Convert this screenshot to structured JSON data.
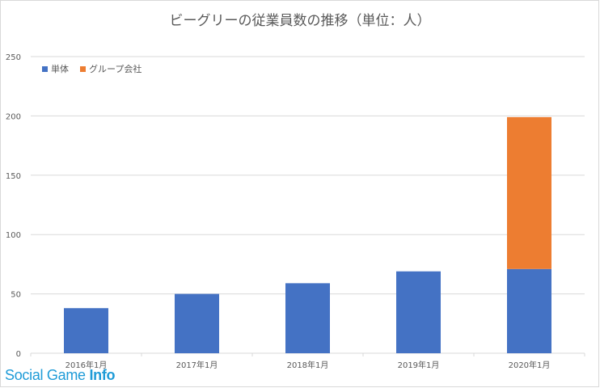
{
  "chart_data": {
    "type": "bar",
    "stacked": true,
    "title": "ビーグリーの従業員数の推移（単位：人）",
    "categories": [
      "2016年1月",
      "2017年1月",
      "2018年1月",
      "2019年1月",
      "2020年1月"
    ],
    "series": [
      {
        "name": "単体",
        "color": "#4472c4",
        "values": [
          38,
          50,
          59,
          69,
          71
        ]
      },
      {
        "name": "グループ会社",
        "color": "#ed7d31",
        "values": [
          0,
          0,
          0,
          0,
          128
        ]
      }
    ],
    "ylim": [
      0,
      250
    ],
    "yticks": [
      0,
      50,
      100,
      150,
      200,
      250
    ],
    "grid": true,
    "legend": "top-left"
  },
  "watermark": {
    "text_regular": "Social Game ",
    "text_bold": "Info"
  }
}
